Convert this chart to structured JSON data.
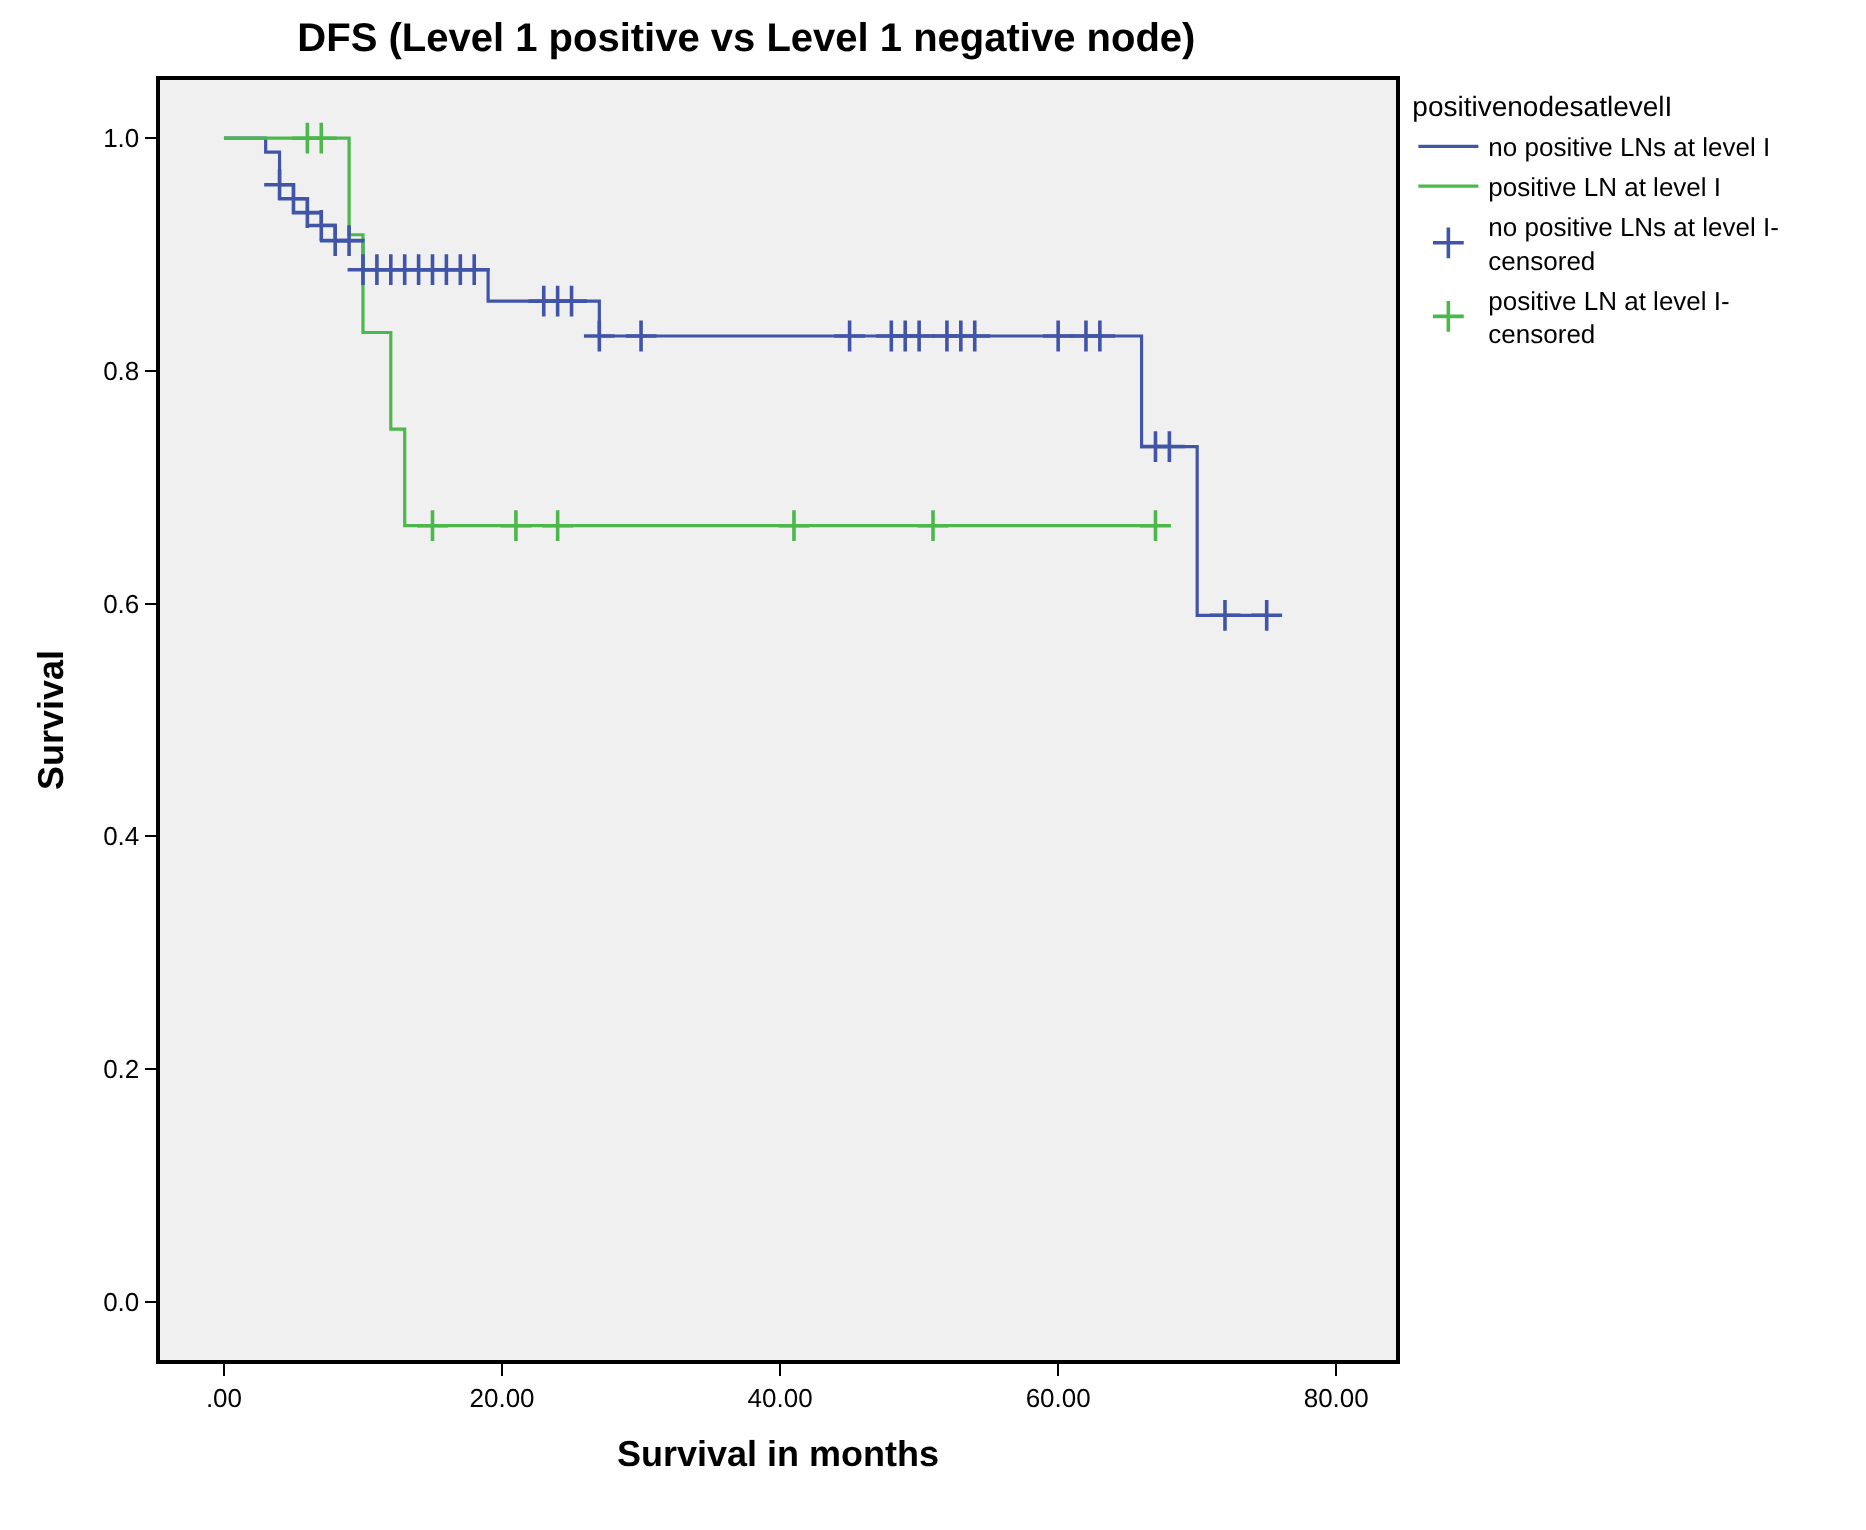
{
  "chart_data": {
    "type": "step",
    "title": "DFS (Level 1 positive vs Level 1 negative node)",
    "xlabel": "Survival in months",
    "ylabel": "Survival",
    "legend_title": "positivenodesatlevelI",
    "xlim": [
      -4.6,
      84.3
    ],
    "ylim": [
      -0.05,
      1.05
    ],
    "xticks": [
      {
        "value": 0,
        "label": ".00"
      },
      {
        "value": 20,
        "label": "20.00"
      },
      {
        "value": 40,
        "label": "40.00"
      },
      {
        "value": 60,
        "label": "60.00"
      },
      {
        "value": 80,
        "label": "80.00"
      }
    ],
    "yticks": [
      {
        "value": 0,
        "label": "0.0"
      },
      {
        "value": 0.2,
        "label": "0.2"
      },
      {
        "value": 0.4,
        "label": "0.4"
      },
      {
        "value": 0.6,
        "label": "0.6"
      },
      {
        "value": 0.8,
        "label": "0.8"
      },
      {
        "value": 1,
        "label": "1.0"
      }
    ],
    "grid": false,
    "legend": "top right",
    "series": [
      {
        "name": "no positive LNs at level I",
        "marker": "none",
        "color": "#4155a8",
        "x": [
          0,
          3,
          4,
          5,
          6,
          7,
          8,
          10,
          19,
          27,
          66,
          70,
          75
        ],
        "values": [
          1,
          0.988,
          0.96,
          0.948,
          0.936,
          0.925,
          0.912,
          0.887,
          0.86,
          0.83,
          0.735,
          0.59,
          0.59
        ]
      },
      {
        "name": "positive LN at level I",
        "marker": "none",
        "color": "#4cb84c",
        "x": [
          0,
          9,
          10,
          12,
          13,
          67
        ],
        "values": [
          1,
          0.917,
          0.833,
          0.75,
          0.667,
          0.667
        ]
      },
      {
        "name": "no positive LNs at level I-\ncensored",
        "type": "scatter",
        "marker": "cross",
        "color": "#4155a8",
        "x": [
          4,
          5,
          6,
          7,
          8,
          9,
          10,
          11,
          12,
          13,
          14,
          15,
          16,
          17,
          18,
          23,
          24,
          25,
          27,
          30,
          45,
          48,
          49,
          50,
          52,
          53,
          54,
          60,
          62,
          63,
          67,
          68,
          72,
          75
        ],
        "values": [
          0.96,
          0.948,
          0.936,
          0.925,
          0.912,
          0.912,
          0.887,
          0.887,
          0.887,
          0.887,
          0.887,
          0.887,
          0.887,
          0.887,
          0.887,
          0.86,
          0.86,
          0.86,
          0.83,
          0.83,
          0.83,
          0.83,
          0.83,
          0.83,
          0.83,
          0.83,
          0.83,
          0.83,
          0.83,
          0.83,
          0.735,
          0.735,
          0.59,
          0.59
        ]
      },
      {
        "name": "positive LN at level I-\ncensored",
        "type": "scatter",
        "marker": "cross",
        "color": "#4cb84c",
        "x": [
          6,
          7,
          15,
          21,
          24,
          41,
          51,
          67
        ],
        "values": [
          1,
          1,
          0.667,
          0.667,
          0.667,
          0.667,
          0.667,
          0.667
        ]
      }
    ]
  }
}
